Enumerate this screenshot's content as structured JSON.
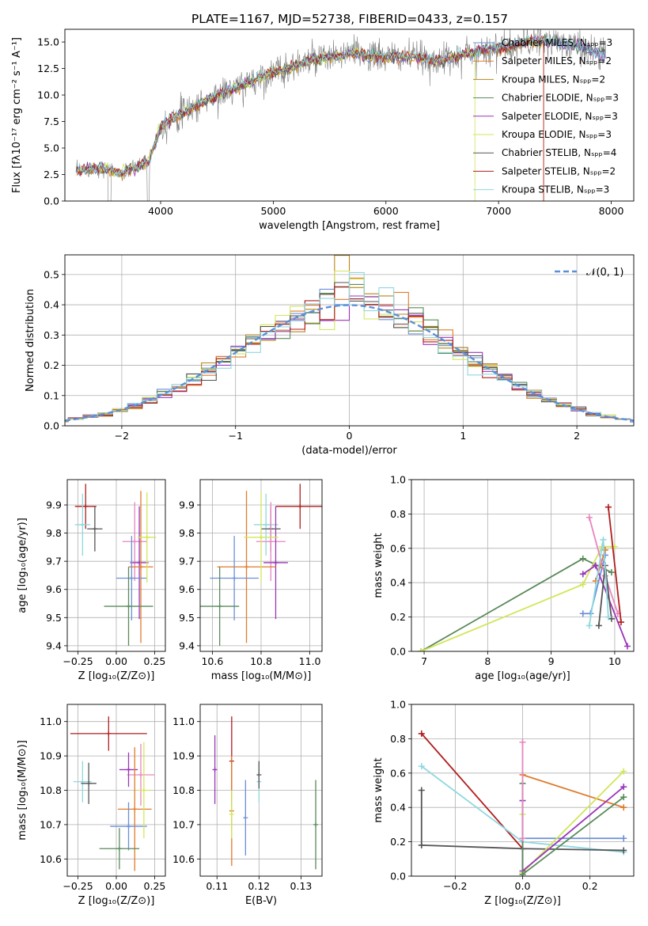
{
  "figure_title": "PLATE=1167, MJD=52738, FIBERID=0433, z=0.157",
  "series_colors": {
    "chabrier_miles": "#6a8fd8",
    "salpeter_miles": "#e07b2c",
    "kroupa_miles": "#b8861b",
    "chabrier_elodie": "#5a8a5a",
    "salpeter_elodie": "#9a36b8",
    "kroupa_elodie": "#d2e65a",
    "chabrier_stelib": "#555555",
    "salpeter_stelib": "#b01e1e",
    "kroupa_stelib": "#8fd8e0",
    "data": "#7f7f7f",
    "pink": "#e884c0",
    "gaussian": "#5b8fd8"
  },
  "chart_data": [
    {
      "type": "line",
      "id": "spectrum",
      "xlabel": "wavelength [Angstrom, rest frame]",
      "ylabel": "Flux [fλ10⁻¹⁷ erg cm⁻² s⁻¹ A⁻¹]",
      "xlim": [
        3150,
        8200
      ],
      "ylim": [
        0,
        16.2
      ],
      "xticks": [
        "4000",
        "5000",
        "6000",
        "7000",
        "8000"
      ],
      "xtick_values": [
        4000,
        5000,
        6000,
        7000,
        8000
      ],
      "yticks": [
        "0.0",
        "2.5",
        "5.0",
        "7.5",
        "10.0",
        "12.5",
        "15.0"
      ],
      "ytick_values": [
        0,
        2.5,
        5,
        7.5,
        10,
        12.5,
        15
      ],
      "grid": false,
      "legend_position": "top-right",
      "legend": [
        {
          "label": "Chabrier MILES, Nₛₚₚ=3",
          "color_key": "chabrier_miles"
        },
        {
          "label": "Salpeter MILES, Nₛₚₚ=2",
          "color_key": "salpeter_miles"
        },
        {
          "label": "Kroupa MILES, Nₛₚₚ=2",
          "color_key": "kroupa_miles"
        },
        {
          "label": "Chabrier ELODIE, Nₛₚₚ=3",
          "color_key": "chabrier_elodie"
        },
        {
          "label": "Salpeter ELODIE, Nₛₚₚ=3",
          "color_key": "salpeter_elodie"
        },
        {
          "label": "Kroupa ELODIE, Nₛₚₚ=3",
          "color_key": "kroupa_elodie"
        },
        {
          "label": "Chabrier STELIB, Nₛₚₚ=4",
          "color_key": "chabrier_stelib"
        },
        {
          "label": "Salpeter STELIB, Nₛₚₚ=2",
          "color_key": "salpeter_stelib"
        },
        {
          "label": "Kroupa STELIB, Nₛₚₚ=3",
          "color_key": "kroupa_stelib"
        }
      ],
      "continuum": {
        "x": [
          3250,
          3400,
          3500,
          3650,
          3800,
          3900,
          4000,
          4100,
          4300,
          4500,
          4700,
          4900,
          5100,
          5300,
          5500,
          5700,
          5900,
          6100,
          6300,
          6500,
          6700,
          6900,
          7100,
          7300,
          7500,
          7700,
          7900
        ],
        "y": [
          2.9,
          3.1,
          3.0,
          2.6,
          3.2,
          3.8,
          7.0,
          7.8,
          8.9,
          10.0,
          10.8,
          11.8,
          12.4,
          13.2,
          13.5,
          14.0,
          13.6,
          13.6,
          13.5,
          13.2,
          13.9,
          14.3,
          14.5,
          15.1,
          15.0,
          14.6,
          13.9
        ]
      }
    },
    {
      "type": "line",
      "id": "residual_histogram",
      "xlabel": "(data-model)/error",
      "ylabel": "Normed distribution",
      "xlim": [
        -2.5,
        2.5
      ],
      "ylim": [
        0,
        0.565
      ],
      "xticks": [
        "−2",
        "−1",
        "0",
        "1",
        "2"
      ],
      "xtick_values": [
        -2,
        -1,
        0,
        1,
        2
      ],
      "yticks": [
        "0.0",
        "0.1",
        "0.2",
        "0.3",
        "0.4",
        "0.5"
      ],
      "ytick_values": [
        0,
        0.1,
        0.2,
        0.3,
        0.4,
        0.5
      ],
      "grid": true,
      "legend_position": "top-right",
      "legend_label": "𝒩(0, 1)"
    },
    {
      "type": "scatter",
      "id": "age_vs_Z",
      "xlabel": "Z [log₁₀(Z/Z⊙)]",
      "ylabel": "age  [log₁₀(age/yr)]",
      "xlim": [
        -0.32,
        0.32
      ],
      "ylim": [
        9.38,
        9.99
      ],
      "xticks": [
        "−0.25",
        "0.00",
        "0.25"
      ],
      "xtick_values": [
        -0.25,
        0,
        0.25
      ],
      "yticks": [
        "9.4",
        "9.5",
        "9.6",
        "9.7",
        "9.8",
        "9.9"
      ],
      "ytick_values": [
        9.4,
        9.5,
        9.6,
        9.7,
        9.8,
        9.9
      ],
      "grid": true,
      "points": [
        {
          "x": -0.2,
          "y": 9.895,
          "xerr": 0.07,
          "yerr": 0.08,
          "c": "salpeter_stelib"
        },
        {
          "x": -0.22,
          "y": 9.83,
          "xerr": 0.05,
          "yerr": 0.11,
          "c": "kroupa_stelib"
        },
        {
          "x": -0.14,
          "y": 9.815,
          "xerr": 0.05,
          "yerr": 0.08,
          "c": "chabrier_stelib"
        },
        {
          "x": 0.12,
          "y": 9.77,
          "xerr": 0.08,
          "yerr": 0.14,
          "c": "pink"
        },
        {
          "x": 0.15,
          "y": 9.695,
          "xerr": 0.06,
          "yerr": 0.2,
          "c": "salpeter_elodie"
        },
        {
          "x": 0.16,
          "y": 9.68,
          "xerr": 0.08,
          "yerr": 0.27,
          "c": "salpeter_miles"
        },
        {
          "x": 0.1,
          "y": 9.64,
          "xerr": 0.1,
          "yerr": 0.15,
          "c": "chabrier_miles"
        },
        {
          "x": 0.08,
          "y": 9.54,
          "xerr": 0.16,
          "yerr": 0.14,
          "c": "chabrier_elodie"
        },
        {
          "x": 0.2,
          "y": 9.785,
          "xerr": 0.06,
          "yerr": 0.16,
          "c": "kroupa_elodie"
        }
      ]
    },
    {
      "type": "scatter",
      "id": "age_vs_mass",
      "xlabel": "mass [log₁₀(M/M⊙)]",
      "ylabel": "",
      "xlim": [
        10.55,
        11.05
      ],
      "ylim": [
        9.38,
        9.99
      ],
      "xticks": [
        "10.6",
        "10.8",
        "11.0"
      ],
      "xtick_values": [
        10.6,
        10.8,
        11.0
      ],
      "yticks": [
        "9.4",
        "9.5",
        "9.6",
        "9.7",
        "9.8",
        "9.9"
      ],
      "ytick_values": [
        9.4,
        9.5,
        9.6,
        9.7,
        9.8,
        9.9
      ],
      "grid": true,
      "points": [
        {
          "x": 10.96,
          "y": 9.895,
          "xerr": 0.1,
          "yerr": 0.08,
          "c": "salpeter_stelib"
        },
        {
          "x": 10.82,
          "y": 9.83,
          "xerr": 0.05,
          "yerr": 0.11,
          "c": "kroupa_stelib"
        },
        {
          "x": 10.84,
          "y": 9.815,
          "xerr": 0.04,
          "yerr": 0.08,
          "c": "chabrier_stelib"
        },
        {
          "x": 10.84,
          "y": 9.77,
          "xerr": 0.06,
          "yerr": 0.14,
          "c": "pink"
        },
        {
          "x": 10.86,
          "y": 9.695,
          "xerr": 0.05,
          "yerr": 0.2,
          "c": "salpeter_elodie"
        },
        {
          "x": 10.74,
          "y": 9.68,
          "xerr": 0.12,
          "yerr": 0.27,
          "c": "salpeter_miles"
        },
        {
          "x": 10.69,
          "y": 9.64,
          "xerr": 0.1,
          "yerr": 0.15,
          "c": "chabrier_miles"
        },
        {
          "x": 10.63,
          "y": 9.54,
          "xerr": 0.08,
          "yerr": 0.14,
          "c": "chabrier_elodie"
        },
        {
          "x": 10.8,
          "y": 9.785,
          "xerr": 0.07,
          "yerr": 0.16,
          "c": "kroupa_elodie"
        }
      ]
    },
    {
      "type": "line",
      "id": "mass_weight_vs_age",
      "xlabel": "age  [log₁₀(age/yr)]",
      "ylabel": "mass weight",
      "xlim": [
        6.8,
        10.3
      ],
      "ylim": [
        0,
        1.0
      ],
      "xticks": [
        "7",
        "8",
        "9",
        "10"
      ],
      "xtick_values": [
        7,
        8,
        9,
        10
      ],
      "yticks": [
        "0.0",
        "0.2",
        "0.4",
        "0.6",
        "0.8",
        "1.0"
      ],
      "ytick_values": [
        0,
        0.2,
        0.4,
        0.6,
        0.8,
        1.0
      ],
      "grid": true,
      "series": [
        {
          "c": "chabrier_elodie",
          "x": [
            6.95,
            9.5,
            9.95
          ],
          "y": [
            0.0,
            0.54,
            0.46
          ]
        },
        {
          "c": "kroupa_elodie",
          "x": [
            6.95,
            9.5,
            9.8,
            10.0
          ],
          "y": [
            0.0,
            0.39,
            0.61,
            0.61
          ]
        },
        {
          "c": "chabrier_miles",
          "x": [
            9.5,
            9.62,
            9.85
          ],
          "y": [
            0.22,
            0.22,
            0.56
          ]
        },
        {
          "c": "salpeter_elodie",
          "x": [
            9.5,
            9.7,
            10.2
          ],
          "y": [
            0.45,
            0.5,
            0.03
          ]
        },
        {
          "c": "salpeter_miles",
          "x": [
            9.7,
            9.85
          ],
          "y": [
            0.41,
            0.59
          ]
        },
        {
          "c": "pink",
          "x": [
            9.6,
            9.85,
            10.05
          ],
          "y": [
            0.78,
            0.44,
            0.22
          ]
        },
        {
          "c": "salpeter_stelib",
          "x": [
            9.9,
            10.1
          ],
          "y": [
            0.84,
            0.17
          ]
        },
        {
          "c": "chabrier_stelib",
          "x": [
            9.75,
            9.85,
            9.95
          ],
          "y": [
            0.15,
            0.5,
            0.19
          ]
        },
        {
          "c": "kroupa_stelib",
          "x": [
            9.6,
            9.82,
            9.9
          ],
          "y": [
            0.15,
            0.65,
            0.2
          ]
        }
      ]
    },
    {
      "type": "scatter",
      "id": "mass_vs_Z",
      "xlabel": "Z [log₁₀(Z/Z⊙)]",
      "ylabel": "mass [log₁₀(M/M⊙)]",
      "xlim": [
        -0.32,
        0.32
      ],
      "ylim": [
        10.55,
        11.05
      ],
      "xticks": [
        "−0.25",
        "0.00",
        "0.25"
      ],
      "xtick_values": [
        -0.25,
        0,
        0.25
      ],
      "yticks": [
        "10.6",
        "10.7",
        "10.8",
        "10.9",
        "11.0"
      ],
      "ytick_values": [
        10.6,
        10.7,
        10.8,
        10.9,
        11.0
      ],
      "grid": true,
      "points": [
        {
          "x": -0.05,
          "y": 10.965,
          "xerr": 0.25,
          "yerr": 0.05,
          "c": "salpeter_stelib"
        },
        {
          "x": -0.22,
          "y": 10.825,
          "xerr": 0.06,
          "yerr": 0.06,
          "c": "kroupa_stelib"
        },
        {
          "x": -0.18,
          "y": 10.82,
          "xerr": 0.05,
          "yerr": 0.06,
          "c": "chabrier_stelib"
        },
        {
          "x": 0.16,
          "y": 10.845,
          "xerr": 0.09,
          "yerr": 0.09,
          "c": "pink"
        },
        {
          "x": 0.08,
          "y": 10.86,
          "xerr": 0.06,
          "yerr": 0.05,
          "c": "salpeter_elodie"
        },
        {
          "x": 0.12,
          "y": 10.745,
          "xerr": 0.11,
          "yerr": 0.18,
          "c": "salpeter_miles"
        },
        {
          "x": 0.08,
          "y": 10.695,
          "xerr": 0.12,
          "yerr": 0.07,
          "c": "chabrier_miles"
        },
        {
          "x": 0.02,
          "y": 10.63,
          "xerr": 0.13,
          "yerr": 0.06,
          "c": "chabrier_elodie"
        },
        {
          "x": 0.18,
          "y": 10.8,
          "xerr": 0.04,
          "yerr": 0.14,
          "c": "kroupa_elodie"
        }
      ]
    },
    {
      "type": "scatter",
      "id": "mass_vs_ebv",
      "xlabel": "E(B-V)",
      "ylabel": "",
      "xlim": [
        0.106,
        0.135
      ],
      "ylim": [
        10.55,
        11.05
      ],
      "xticks": [
        "0.11",
        "0.12",
        "0.13"
      ],
      "xtick_values": [
        0.11,
        0.12,
        0.13
      ],
      "yticks": [
        "10.6",
        "10.7",
        "10.8",
        "10.9",
        "11.0"
      ],
      "ytick_values": [
        10.6,
        10.7,
        10.8,
        10.9,
        11.0
      ],
      "grid": true,
      "points": [
        {
          "x": 0.1095,
          "y": 10.86,
          "xerr": 0.0,
          "yerr": 0.1,
          "c": "salpeter_elodie"
        },
        {
          "x": 0.1135,
          "y": 10.885,
          "xerr": 0.0,
          "yerr": 0.13,
          "c": "salpeter_stelib"
        },
        {
          "x": 0.1135,
          "y": 10.74,
          "xerr": 0.0,
          "yerr": 0.16,
          "c": "salpeter_miles"
        },
        {
          "x": 0.1135,
          "y": 10.73,
          "xerr": 0.0,
          "yerr": 0.07,
          "c": "kroupa_elodie"
        },
        {
          "x": 0.1168,
          "y": 10.72,
          "xerr": 0.0,
          "yerr": 0.11,
          "c": "chabrier_miles"
        },
        {
          "x": 0.12,
          "y": 10.825,
          "xerr": 0.0,
          "yerr": 0.06,
          "c": "kroupa_stelib"
        },
        {
          "x": 0.12,
          "y": 10.845,
          "xerr": 0.0,
          "yerr": 0.04,
          "c": "chabrier_stelib"
        },
        {
          "x": 0.1335,
          "y": 10.7,
          "xerr": 0.0,
          "yerr": 0.13,
          "c": "chabrier_elodie"
        }
      ]
    },
    {
      "type": "line",
      "id": "mass_weight_vs_Z",
      "xlabel": "Z [log₁₀(Z/Z⊙)]",
      "ylabel": "mass weight",
      "xlim": [
        -0.33,
        0.33
      ],
      "ylim": [
        0,
        1.0
      ],
      "xticks": [
        "−0.2",
        "0.0",
        "0.2"
      ],
      "xtick_values": [
        -0.2,
        0,
        0.2
      ],
      "yticks": [
        "0.0",
        "0.2",
        "0.4",
        "0.6",
        "0.8",
        "1.0"
      ],
      "ytick_values": [
        0,
        0.2,
        0.4,
        0.6,
        0.8,
        1.0
      ],
      "grid": true,
      "series": [
        {
          "c": "salpeter_stelib",
          "x": [
            -0.3,
            0.0
          ],
          "y": [
            0.83,
            0.16
          ]
        },
        {
          "c": "kroupa_stelib",
          "x": [
            -0.3,
            0.0,
            0.3
          ],
          "y": [
            0.64,
            0.2,
            0.14
          ]
        },
        {
          "c": "chabrier_stelib",
          "x": [
            -0.3,
            -0.3,
            0.0,
            0.3
          ],
          "y": [
            0.5,
            0.18,
            0.16,
            0.15
          ]
        },
        {
          "c": "salpeter_miles",
          "x": [
            0.0,
            0.3
          ],
          "y": [
            0.59,
            0.4
          ]
        },
        {
          "c": "chabrier_miles",
          "x": [
            0.0,
            0.3
          ],
          "y": [
            0.22,
            0.22
          ]
        },
        {
          "c": "kroupa_elodie",
          "x": [
            0.0,
            0.0,
            0.3
          ],
          "y": [
            0.36,
            0.02,
            0.61
          ]
        },
        {
          "c": "salpeter_elodie",
          "x": [
            0.0,
            0.0,
            0.3
          ],
          "y": [
            0.44,
            0.03,
            0.52
          ]
        },
        {
          "c": "chabrier_elodie",
          "x": [
            0.0,
            0.0,
            0.3
          ],
          "y": [
            0.54,
            0.01,
            0.46
          ]
        },
        {
          "c": "pink",
          "x": [
            0.0,
            0.0
          ],
          "y": [
            0.78,
            0.22
          ]
        }
      ]
    }
  ]
}
